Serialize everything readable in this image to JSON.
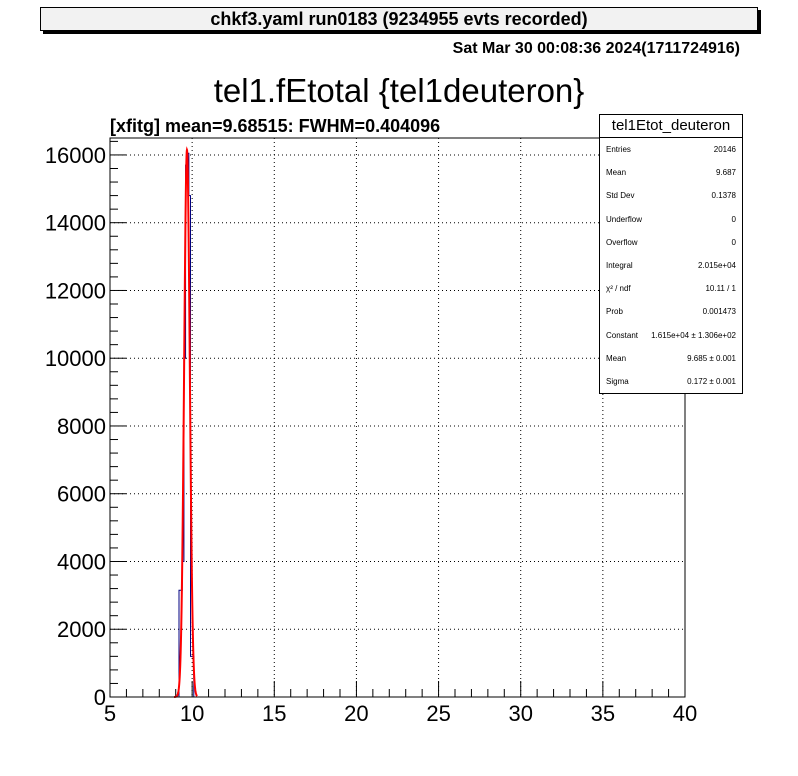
{
  "header": {
    "title": "chkf3.yaml  run0183 (9234955 evts recorded)",
    "timestamp": "Sat Mar 30 00:08:36 2024(1711724916)"
  },
  "fit_label": "[xfitg] mean=9.68515: FWHM=0.404096",
  "stats": {
    "title": "tel1Etot_deuteron",
    "rows": [
      {
        "name": "Entries",
        "value": "20146"
      },
      {
        "name": "Mean",
        "value": "9.687"
      },
      {
        "name": "Std Dev",
        "value": "0.1378"
      },
      {
        "name": "Underflow",
        "value": "0"
      },
      {
        "name": "Overflow",
        "value": "0"
      },
      {
        "name": "Integral",
        "value": "2.015e+04"
      },
      {
        "name": "χ² / ndf",
        "value": "10.11 / 1"
      },
      {
        "name": "Prob",
        "value": "0.001473"
      },
      {
        "name": "Constant",
        "value": "1.615e+04 ± 1.306e+02"
      },
      {
        "name": "Mean",
        "value": "9.685 ± 0.001"
      },
      {
        "name": "Sigma",
        "value": "0.172 ± 0.001"
      }
    ]
  },
  "colors": {
    "histogram": "#000080",
    "fit": "#ff0000",
    "grid": "#000000"
  },
  "chart_data": {
    "type": "line",
    "title": "tel1.fEtotal {tel1deuteron}",
    "xlabel": "",
    "ylabel": "",
    "xlim": [
      5,
      40
    ],
    "ylim": [
      0,
      16500
    ],
    "xticks": [
      5,
      10,
      15,
      20,
      25,
      30,
      35,
      40
    ],
    "yticks": [
      0,
      2000,
      4000,
      6000,
      8000,
      10000,
      12000,
      14000,
      16000
    ],
    "grid": true,
    "legend": "top-right",
    "series": [
      {
        "kind": "histogram",
        "bin_width": 0.1,
        "bins": [
          {
            "x": 9.1,
            "y": 0
          },
          {
            "x": 9.2,
            "y": 3150
          },
          {
            "x": 9.3,
            "y": 3150
          },
          {
            "x": 9.4,
            "y": 4000
          },
          {
            "x": 9.5,
            "y": 10000
          },
          {
            "x": 9.6,
            "y": 15700
          },
          {
            "x": 9.7,
            "y": 16050
          },
          {
            "x": 9.8,
            "y": 14800
          },
          {
            "x": 9.9,
            "y": 1200
          },
          {
            "x": 10.0,
            "y": 1200
          },
          {
            "x": 10.1,
            "y": 0
          }
        ]
      },
      {
        "kind": "gaussian-fit",
        "constant": 16150,
        "mean": 9.685,
        "sigma": 0.172,
        "range": [
          8.9,
          10.3
        ]
      }
    ]
  }
}
